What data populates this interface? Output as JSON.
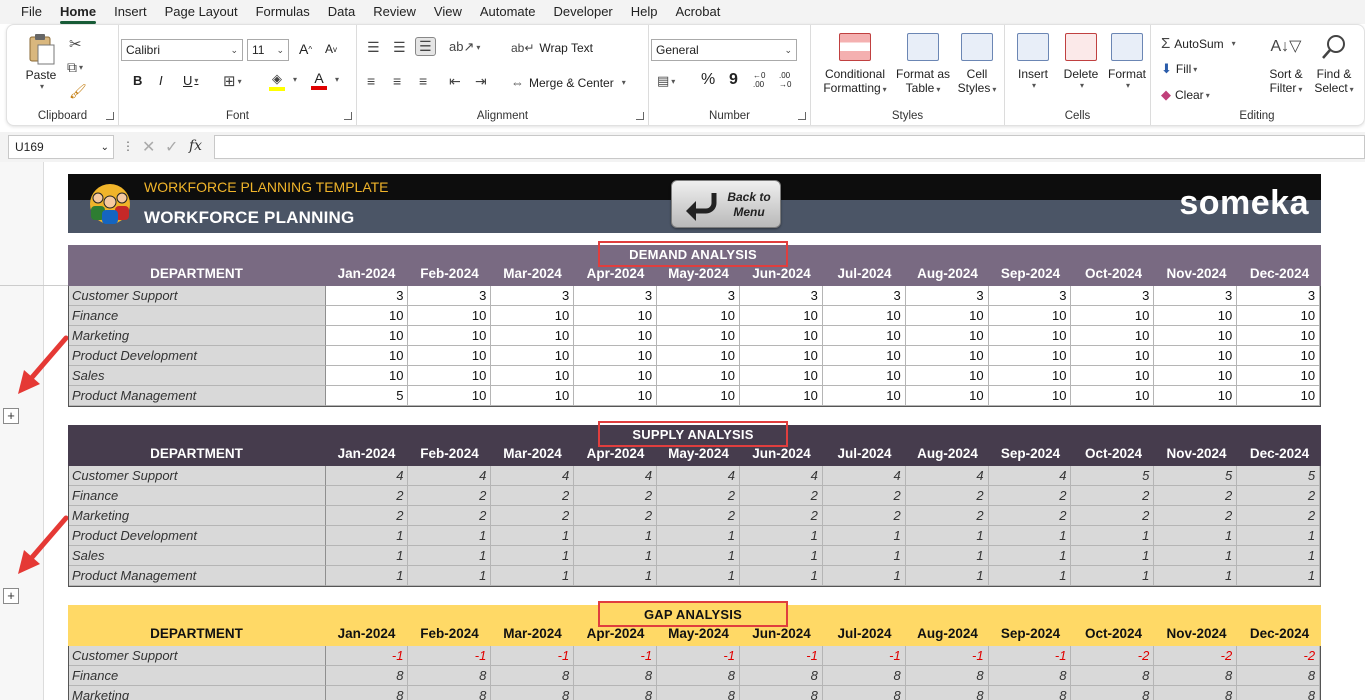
{
  "menu": {
    "tabs": [
      "File",
      "Home",
      "Insert",
      "Page Layout",
      "Formulas",
      "Data",
      "Review",
      "View",
      "Automate",
      "Developer",
      "Help",
      "Acrobat"
    ],
    "active": "Home"
  },
  "ribbon": {
    "clipboard": {
      "label": "Clipboard",
      "paste": "Paste"
    },
    "font": {
      "label": "Font",
      "name": "Calibri",
      "size": "11",
      "bold": "B",
      "italic": "I",
      "underline": "U",
      "grow": "A",
      "shrink": "A"
    },
    "alignment": {
      "label": "Alignment",
      "wrap_text": "Wrap Text",
      "merge_center": "Merge & Center"
    },
    "number": {
      "label": "Number",
      "format": "General",
      "percent": "%",
      "comma": "9",
      "inc_decimal": "←0 .00",
      "dec_decimal": ".00 →0"
    },
    "styles": {
      "label": "Styles",
      "conditional_l1": "Conditional",
      "conditional_l2": "Formatting",
      "format_table_l1": "Format as",
      "format_table_l2": "Table",
      "cell_styles_l1": "Cell",
      "cell_styles_l2": "Styles"
    },
    "cells": {
      "label": "Cells",
      "insert": "Insert",
      "delete": "Delete",
      "format": "Format"
    },
    "editing": {
      "label": "Editing",
      "autosum": "AutoSum",
      "fill": "Fill",
      "clear": "Clear",
      "sort_l1": "Sort &",
      "sort_l2": "Filter",
      "find_l1": "Find &",
      "find_l2": "Select"
    }
  },
  "formula_bar": {
    "name_box": "U169",
    "fx": "fx",
    "value": ""
  },
  "banner": {
    "template_title": "WORKFORCE PLANNING TEMPLATE",
    "main_title": "WORKFORCE PLANNING",
    "back_button": "Back to\nMenu",
    "brand": "someka"
  },
  "table_header": {
    "department": "DEPARTMENT",
    "months": [
      "Jan-2024",
      "Feb-2024",
      "Mar-2024",
      "Apr-2024",
      "May-2024",
      "Jun-2024",
      "Jul-2024",
      "Aug-2024",
      "Sep-2024",
      "Oct-2024",
      "Nov-2024",
      "Dec-2024"
    ]
  },
  "demand": {
    "title": "DEMAND ANALYSIS",
    "rows": [
      {
        "dept": "Customer Support",
        "values": [
          3,
          3,
          3,
          3,
          3,
          3,
          3,
          3,
          3,
          3,
          3,
          3
        ]
      },
      {
        "dept": "Finance",
        "values": [
          10,
          10,
          10,
          10,
          10,
          10,
          10,
          10,
          10,
          10,
          10,
          10
        ]
      },
      {
        "dept": "Marketing",
        "values": [
          10,
          10,
          10,
          10,
          10,
          10,
          10,
          10,
          10,
          10,
          10,
          10
        ]
      },
      {
        "dept": "Product Development",
        "values": [
          10,
          10,
          10,
          10,
          10,
          10,
          10,
          10,
          10,
          10,
          10,
          10
        ]
      },
      {
        "dept": "Sales",
        "values": [
          10,
          10,
          10,
          10,
          10,
          10,
          10,
          10,
          10,
          10,
          10,
          10
        ]
      },
      {
        "dept": "Product Management",
        "values": [
          5,
          10,
          10,
          10,
          10,
          10,
          10,
          10,
          10,
          10,
          10,
          10
        ]
      }
    ]
  },
  "supply": {
    "title": "SUPPLY ANALYSIS",
    "rows": [
      {
        "dept": "Customer Support",
        "values": [
          4,
          4,
          4,
          4,
          4,
          4,
          4,
          4,
          4,
          5,
          5,
          5
        ]
      },
      {
        "dept": "Finance",
        "values": [
          2,
          2,
          2,
          2,
          2,
          2,
          2,
          2,
          2,
          2,
          2,
          2
        ]
      },
      {
        "dept": "Marketing",
        "values": [
          2,
          2,
          2,
          2,
          2,
          2,
          2,
          2,
          2,
          2,
          2,
          2
        ]
      },
      {
        "dept": "Product Development",
        "values": [
          1,
          1,
          1,
          1,
          1,
          1,
          1,
          1,
          1,
          1,
          1,
          1
        ]
      },
      {
        "dept": "Sales",
        "values": [
          1,
          1,
          1,
          1,
          1,
          1,
          1,
          1,
          1,
          1,
          1,
          1
        ]
      },
      {
        "dept": "Product Management",
        "values": [
          1,
          1,
          1,
          1,
          1,
          1,
          1,
          1,
          1,
          1,
          1,
          1
        ]
      }
    ]
  },
  "gap": {
    "title": "GAP ANALYSIS",
    "rows": [
      {
        "dept": "Customer Support",
        "values": [
          -1,
          -1,
          -1,
          -1,
          -1,
          -1,
          -1,
          -1,
          -1,
          -2,
          -2,
          -2
        ]
      },
      {
        "dept": "Finance",
        "values": [
          8,
          8,
          8,
          8,
          8,
          8,
          8,
          8,
          8,
          8,
          8,
          8
        ]
      },
      {
        "dept": "Marketing",
        "values": [
          8,
          8,
          8,
          8,
          8,
          8,
          8,
          8,
          8,
          8,
          8,
          8
        ]
      }
    ]
  },
  "outline": {
    "expand_symbol": "+"
  },
  "colors": {
    "accent": "#185c37",
    "demand_header": "#796a82",
    "supply_header": "#463c4d",
    "gap_header": "#ffd966",
    "negative": "#e00000",
    "highlight_box": "#e03e3e"
  }
}
